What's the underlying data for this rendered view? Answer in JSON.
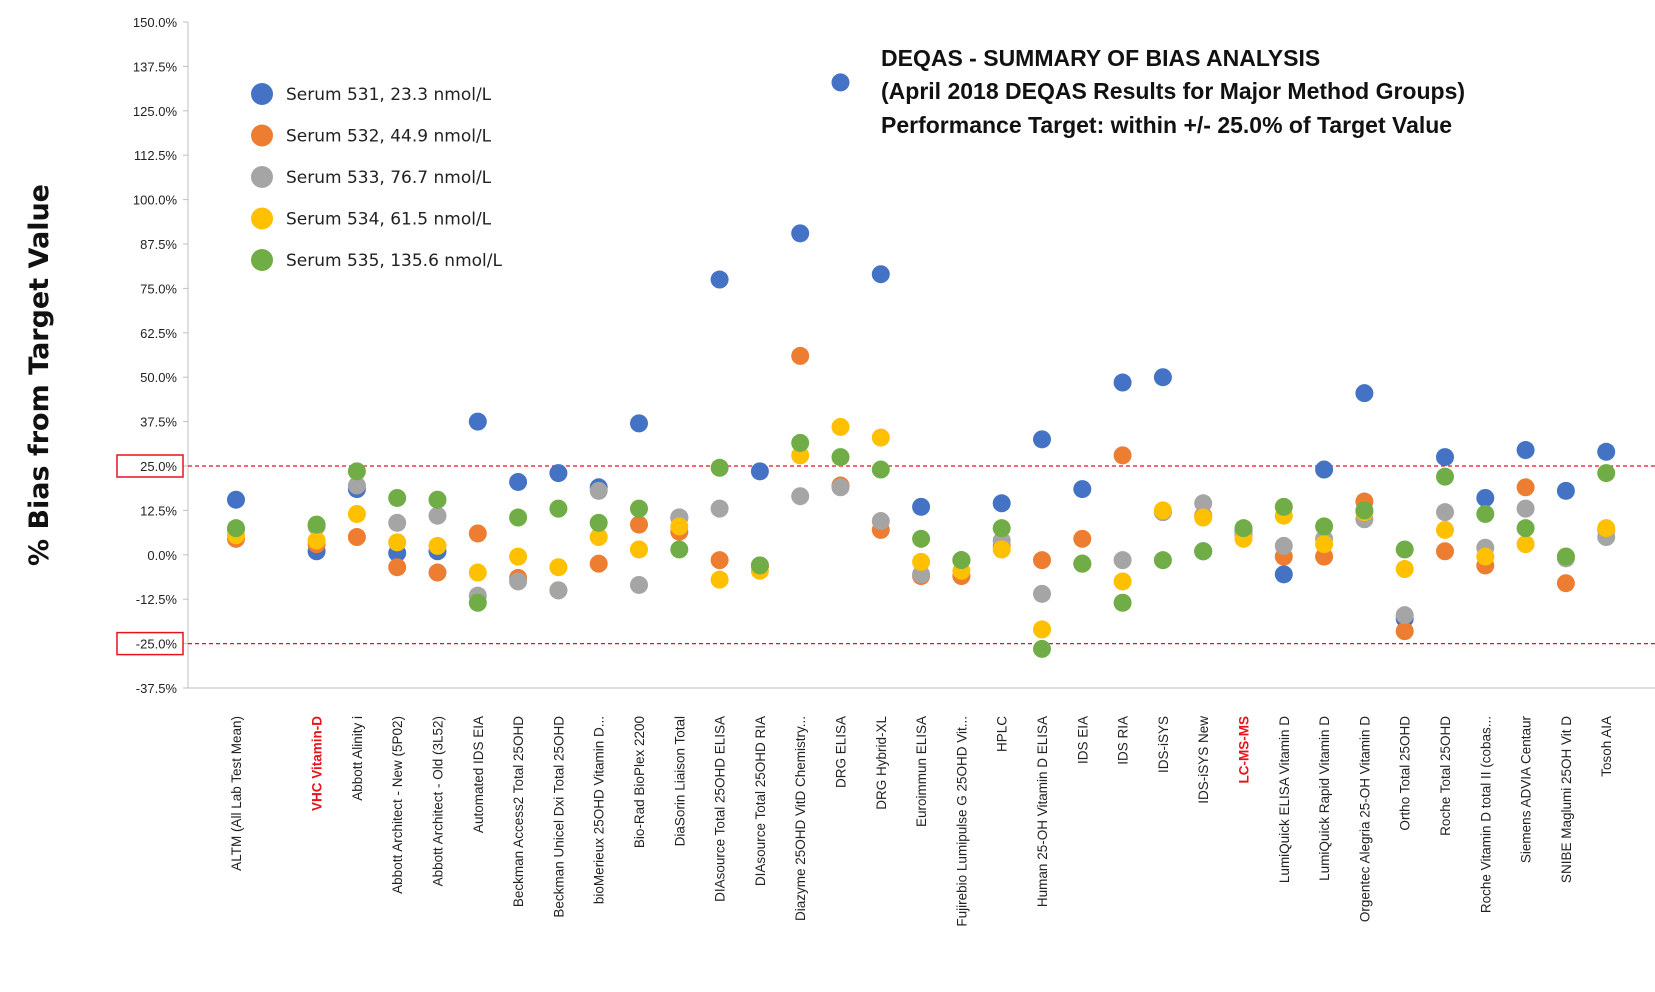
{
  "chart_data": {
    "type": "scatter",
    "title_lines": [
      "DEQAS - SUMMARY OF BIAS ANALYSIS",
      "(April 2018 DEQAS Results for Major Method Groups)",
      "Performance Target: within +/- 25.0% of Target Value"
    ],
    "ylabel": "% Bias from Target Value",
    "xlabel": "",
    "ylim": [
      -37.5,
      150
    ],
    "yticks": [
      "150.0%",
      "137.5%",
      "125.0%",
      "112.5%",
      "100.0%",
      "87.5%",
      "75.0%",
      "62.5%",
      "50.0%",
      "37.5%",
      "25.0%",
      "12.5%",
      "0.0%",
      "-12.5%",
      "-25.0%",
      "-37.5%"
    ],
    "reference_lines": [
      25.0,
      -25.0
    ],
    "highlighted_categories": [
      "VHC Vitamin-D",
      "LC-MS-MS"
    ],
    "categories": [
      "ALTM (All Lab Test Mean)",
      "",
      "VHC Vitamin-D",
      "Abbott Alinity i",
      "Abbott Architect - New (5P02)",
      "Abbott Architect - Old (3L52)",
      "Automated IDS EIA",
      "Beckman Access2 Total 25OHD",
      "Beckman Unicel Dxi Total 25OHD",
      "bioMerieux 25OHD Vitamin D...",
      "Bio-Rad BioPlex 2200",
      "DiaSorin Liaison Total",
      "DIAsource Total 25OHD ELISA",
      "DIAsource Total 25OHD RIA",
      "Diazyme 25OHD VitD Chemistry...",
      "DRG ELISA",
      "DRG Hybrid-XL",
      "Euroimmun ELISA",
      "Fujirebio Lumipulse G 25OHD Vit...",
      "HPLC",
      "Human 25-OH Vitamin D ELISA",
      "IDS EIA",
      "IDS RIA",
      "IDS-iSYS",
      "IDS-iSYS New",
      "LC-MS-MS",
      "LumiQuick ELISA Vitamin D",
      "LumiQuick Rapid Vitamin D",
      "Orgentec Alegria 25-OH Vitamin D",
      "Ortho Total 25OHD",
      "Roche Total 25OHD",
      "Roche Vitamin D total II (cobas...",
      "Siemens ADVIA Centaur",
      "SNIBE Maglumi 25OH Vit D",
      "Tosoh AIA"
    ],
    "series": [
      {
        "name": "Serum 531, 23.3 nmol/L",
        "color": "#4472c4",
        "values": [
          15.5,
          null,
          1.0,
          18.5,
          0.5,
          1.0,
          37.5,
          20.5,
          23.0,
          19.0,
          37.0,
          10.5,
          77.5,
          23.5,
          90.5,
          133.0,
          79.0,
          13.5,
          -1.5,
          14.5,
          32.5,
          18.5,
          48.5,
          50.0,
          1.0,
          7.0,
          -5.5,
          24.0,
          45.5,
          -18.0,
          27.5,
          16.0,
          29.5,
          18.0,
          29.0
        ]
      },
      {
        "name": "Serum 532, 44.9 nmol/L",
        "color": "#ed7d31",
        "values": [
          4.5,
          null,
          3.0,
          5.0,
          -3.5,
          -5.0,
          6.0,
          -6.5,
          -10.0,
          -2.5,
          8.5,
          6.5,
          -1.5,
          -3.0,
          56.0,
          19.5,
          7.0,
          -6.0,
          -6.0,
          2.5,
          -1.5,
          4.5,
          28.0,
          12.0,
          11.0,
          6.0,
          -0.5,
          -0.5,
          15.0,
          -21.5,
          1.0,
          -3.0,
          19.0,
          -8.0,
          7.0
        ]
      },
      {
        "name": "Serum 533, 76.7 nmol/L",
        "color": "#a5a5a5",
        "values": [
          7.0,
          null,
          8.0,
          19.5,
          9.0,
          11.0,
          -11.5,
          -7.5,
          -10.0,
          18.0,
          -8.5,
          10.5,
          13.0,
          -3.0,
          16.5,
          19.0,
          9.5,
          -5.5,
          -1.5,
          4.0,
          -11.0,
          -2.5,
          -1.5,
          12.0,
          14.5,
          5.5,
          2.5,
          4.5,
          10.0,
          -17.0,
          12.0,
          2.0,
          13.0,
          -1.0,
          5.0
        ]
      },
      {
        "name": "Serum 534, 61.5 nmol/L",
        "color": "#ffc000",
        "values": [
          5.5,
          null,
          4.0,
          11.5,
          3.5,
          2.5,
          -5.0,
          -0.5,
          -3.5,
          5.0,
          1.5,
          8.0,
          -7.0,
          -4.5,
          28.0,
          36.0,
          33.0,
          -2.0,
          -4.5,
          1.5,
          -21.0,
          -2.5,
          -7.5,
          12.5,
          10.5,
          4.5,
          11.0,
          3.0,
          12.0,
          -4.0,
          7.0,
          -0.5,
          3.0,
          -0.5,
          7.5
        ]
      },
      {
        "name": "Serum 535, 135.6 nmol/L",
        "color": "#70ad47",
        "values": [
          7.5,
          null,
          8.5,
          23.5,
          16.0,
          15.5,
          -13.5,
          10.5,
          13.0,
          9.0,
          13.0,
          1.5,
          24.5,
          -3.0,
          31.5,
          27.5,
          24.0,
          4.5,
          -1.5,
          7.5,
          -26.5,
          -2.5,
          -13.5,
          -1.5,
          1.0,
          7.5,
          13.5,
          8.0,
          12.5,
          1.5,
          22.0,
          11.5,
          7.5,
          -0.5,
          23.0
        ]
      }
    ],
    "legend_position": "top-left",
    "grid": false
  }
}
